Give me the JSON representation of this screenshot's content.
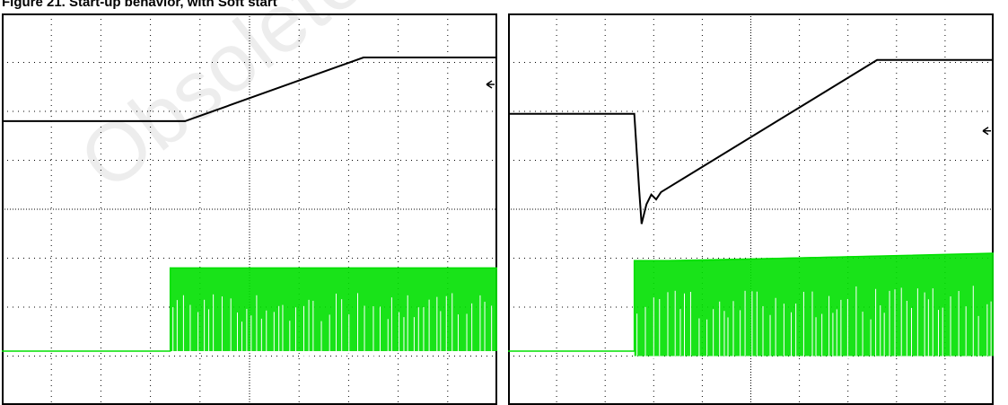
{
  "page": {
    "title": "Figure 21. Start-up behavior, with Soft start",
    "watermark": "Obsolete Product(s) - Obsolete"
  },
  "colors": {
    "frame": "#000000",
    "grid": "#000000",
    "trace_top": "#000000",
    "trace_bottom": "#00e000",
    "background": "#ffffff"
  },
  "icons": {
    "ground_marker": "left-arrow-icon"
  },
  "chart_data": [
    {
      "type": "line",
      "title": "",
      "xlabel": "",
      "ylabel": "",
      "xlim": [
        -5,
        5
      ],
      "ylim": [
        -4,
        4
      ],
      "grid": true,
      "series": [
        {
          "x": [
            -5,
            -1.3,
            2.3,
            5
          ],
          "y": [
            1.8,
            1.8,
            3.1,
            3.1
          ]
        },
        {
          "x": [
            -5,
            -1.6,
            -1.6,
            5
          ],
          "y": [
            -2.9,
            -2.9,
            -1.2,
            -1.2
          ],
          "kind": "switching-envelope",
          "envelope_low": -2.9
        }
      ],
      "ground_marker_level": 2.55
    },
    {
      "type": "line",
      "title": "",
      "xlabel": "",
      "ylabel": "",
      "xlim": [
        -5,
        5
      ],
      "ylim": [
        -4,
        4
      ],
      "grid": true,
      "series": [
        {
          "x": [
            -5,
            -2.4,
            -2.3,
            -2.25,
            -2.15,
            -2.05,
            -1.95,
            -1.85,
            2.6,
            5
          ],
          "y": [
            1.95,
            1.95,
            0.4,
            -0.3,
            0.1,
            0.3,
            0.2,
            0.35,
            3.05,
            3.05
          ]
        },
        {
          "x": [
            -5,
            -2.4,
            -2.4,
            -1.3,
            5
          ],
          "y": [
            -2.9,
            -2.9,
            -1.05,
            -1.05,
            -0.9
          ],
          "kind": "switching-envelope",
          "envelope_low": -3.0
        }
      ],
      "ground_marker_level": 1.6
    }
  ]
}
